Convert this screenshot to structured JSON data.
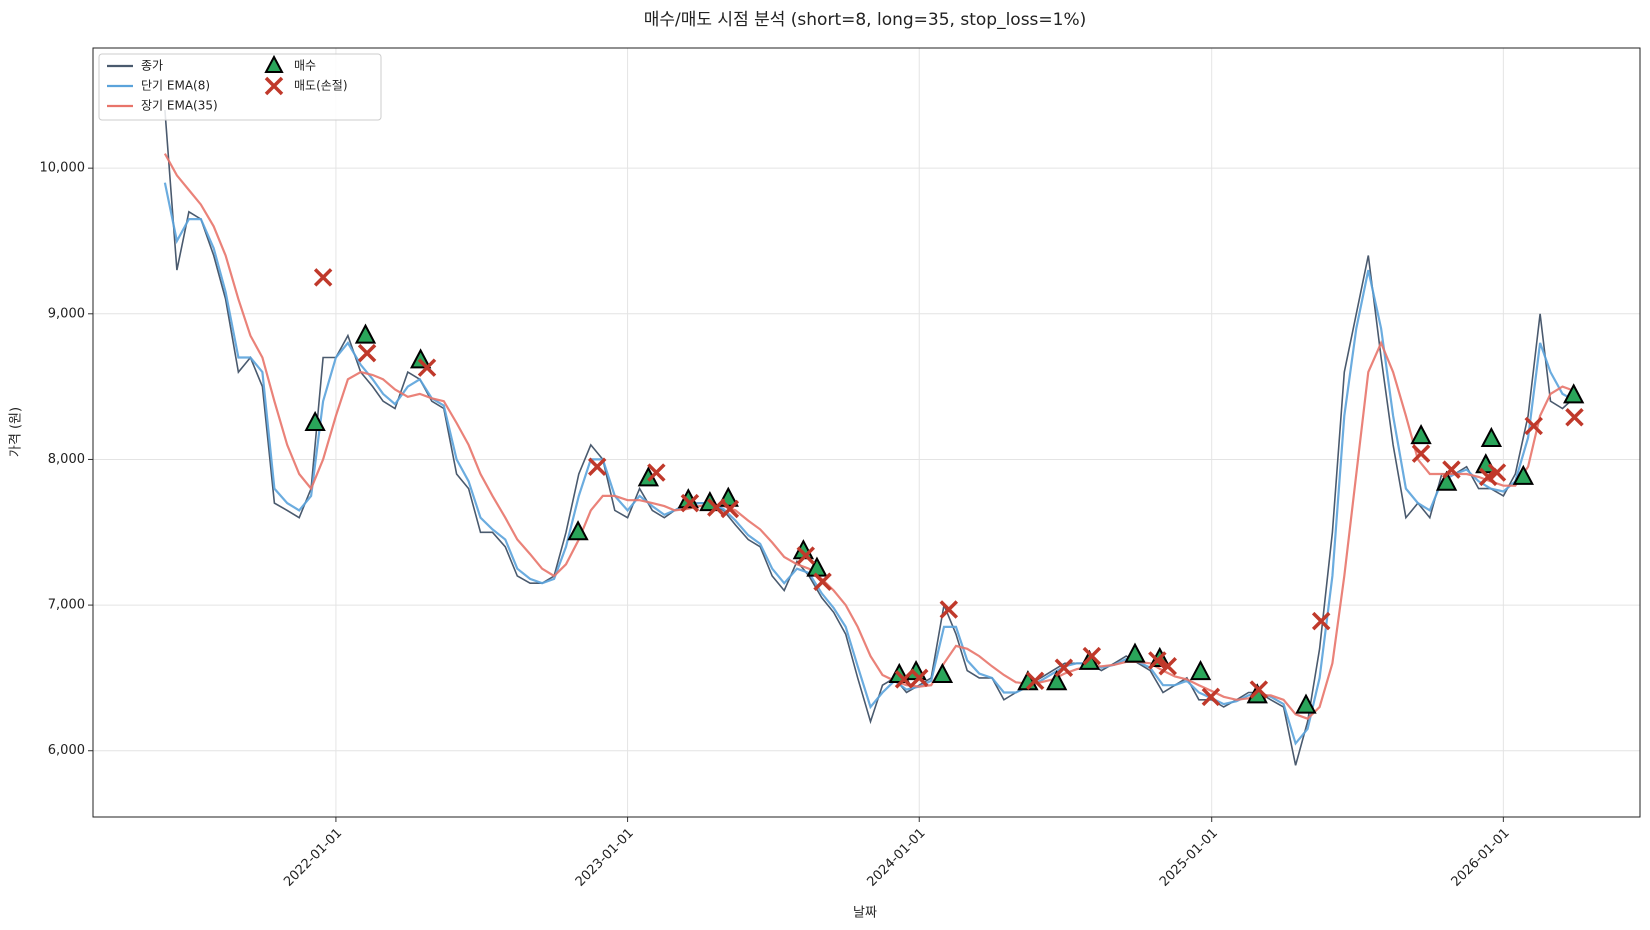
{
  "chart_data": {
    "type": "line",
    "title": "매수/매도 시점 분석 (short=8, long=35, stop_loss=1%)",
    "x_label": "날짜",
    "y_label": "가격 (원)",
    "xlim": [
      "2021-03-03",
      "2026-06-21"
    ],
    "xticks": [
      "2022-01-01",
      "2023-01-01",
      "2024-01-01",
      "2025-01-01",
      "2026-01-01"
    ],
    "ylim": [
      5545,
      10825
    ],
    "yticks": [
      {
        "value": 6000,
        "label": "6,000"
      },
      {
        "value": 7000,
        "label": "7,000"
      },
      {
        "value": 8000,
        "label": "8,000"
      },
      {
        "value": 9000,
        "label": "9,000"
      },
      {
        "value": 10000,
        "label": "10,000"
      }
    ],
    "grid": true,
    "legend": "upper left",
    "x": [
      "2021-06-01",
      "2021-06-16",
      "2021-07-01",
      "2021-07-16",
      "2021-08-01",
      "2021-08-16",
      "2021-09-01",
      "2021-09-16",
      "2021-10-01",
      "2021-10-16",
      "2021-11-01",
      "2021-11-16",
      "2021-12-01",
      "2021-12-16",
      "2022-01-01",
      "2022-01-16",
      "2022-02-01",
      "2022-02-16",
      "2022-03-01",
      "2022-03-16",
      "2022-04-01",
      "2022-04-16",
      "2022-05-01",
      "2022-05-16",
      "2022-06-01",
      "2022-06-16",
      "2022-07-01",
      "2022-07-16",
      "2022-08-01",
      "2022-08-16",
      "2022-09-01",
      "2022-09-16",
      "2022-10-01",
      "2022-10-16",
      "2022-11-01",
      "2022-11-16",
      "2022-12-01",
      "2022-12-16",
      "2023-01-01",
      "2023-01-16",
      "2023-02-01",
      "2023-02-16",
      "2023-03-01",
      "2023-03-16",
      "2023-04-01",
      "2023-04-16",
      "2023-05-01",
      "2023-05-16",
      "2023-06-01",
      "2023-06-16",
      "2023-07-01",
      "2023-07-16",
      "2023-08-01",
      "2023-08-16",
      "2023-09-01",
      "2023-09-16",
      "2023-10-01",
      "2023-10-16",
      "2023-11-01",
      "2023-11-16",
      "2023-12-01",
      "2023-12-16",
      "2024-01-01",
      "2024-01-16",
      "2024-02-01",
      "2024-02-16",
      "2024-03-01",
      "2024-03-16",
      "2024-04-01",
      "2024-04-16",
      "2024-05-01",
      "2024-05-16",
      "2024-06-01",
      "2024-06-16",
      "2024-07-01",
      "2024-07-16",
      "2024-08-01",
      "2024-08-16",
      "2024-09-01",
      "2024-09-16",
      "2024-10-01",
      "2024-10-16",
      "2024-11-01",
      "2024-11-16",
      "2024-12-01",
      "2024-12-16",
      "2025-01-01",
      "2025-01-16",
      "2025-02-01",
      "2025-02-16",
      "2025-03-01",
      "2025-03-16",
      "2025-04-01",
      "2025-04-16",
      "2025-05-01",
      "2025-05-16",
      "2025-06-01",
      "2025-06-16",
      "2025-07-01",
      "2025-07-16",
      "2025-08-01",
      "2025-08-16",
      "2025-09-01",
      "2025-09-16",
      "2025-10-01",
      "2025-10-16",
      "2025-11-01",
      "2025-11-16",
      "2025-12-01",
      "2025-12-16",
      "2026-01-01",
      "2026-01-16",
      "2026-02-01",
      "2026-02-16",
      "2026-03-01",
      "2026-03-16",
      "2026-03-26"
    ],
    "series": [
      {
        "name": "종가",
        "color": "#4a5a6e",
        "values": [
          10400,
          9300,
          9700,
          9650,
          9400,
          9100,
          8600,
          8700,
          8500,
          7700,
          7650,
          7600,
          7800,
          8700,
          8700,
          8850,
          8600,
          8500,
          8400,
          8350,
          8600,
          8550,
          8400,
          8350,
          7900,
          7800,
          7500,
          7500,
          7400,
          7200,
          7150,
          7150,
          7200,
          7500,
          7900,
          8100,
          8000,
          7650,
          7600,
          7800,
          7650,
          7600,
          7650,
          7700,
          7700,
          7700,
          7650,
          7550,
          7450,
          7400,
          7200,
          7100,
          7300,
          7200,
          7050,
          6950,
          6800,
          6500,
          6200,
          6450,
          6500,
          6400,
          6450,
          6500,
          7000,
          6800,
          6550,
          6500,
          6500,
          6350,
          6400,
          6450,
          6500,
          6550,
          6600,
          6600,
          6600,
          6550,
          6600,
          6650,
          6600,
          6550,
          6400,
          6450,
          6500,
          6350,
          6350,
          6300,
          6350,
          6400,
          6400,
          6350,
          6300,
          5900,
          6200,
          6700,
          7500,
          8600,
          9000,
          9400,
          8700,
          8100,
          7600,
          7700,
          7600,
          7900,
          7900,
          7950,
          7800,
          7800,
          7750,
          7900,
          8300,
          9000,
          8400,
          8350,
          8400
        ]
      },
      {
        "name": "단기 EMA(8)",
        "color": "#5ba3db",
        "values": [
          9900,
          9500,
          9650,
          9650,
          9450,
          9150,
          8700,
          8700,
          8600,
          7800,
          7700,
          7650,
          7750,
          8400,
          8700,
          8800,
          8650,
          8550,
          8450,
          8380,
          8500,
          8550,
          8420,
          8370,
          8000,
          7850,
          7600,
          7520,
          7450,
          7250,
          7180,
          7150,
          7180,
          7400,
          7750,
          8000,
          8000,
          7750,
          7650,
          7750,
          7680,
          7620,
          7650,
          7690,
          7700,
          7700,
          7660,
          7580,
          7480,
          7420,
          7250,
          7150,
          7250,
          7220,
          7080,
          6980,
          6850,
          6580,
          6300,
          6400,
          6480,
          6420,
          6440,
          6480,
          6850,
          6850,
          6620,
          6530,
          6500,
          6400,
          6400,
          6440,
          6480,
          6530,
          6580,
          6600,
          6600,
          6570,
          6590,
          6630,
          6610,
          6570,
          6450,
          6450,
          6480,
          6400,
          6360,
          6320,
          6340,
          6380,
          6400,
          6370,
          6320,
          6050,
          6150,
          6500,
          7200,
          8300,
          8900,
          9300,
          8900,
          8300,
          7800,
          7700,
          7650,
          7850,
          7900,
          7930,
          7850,
          7800,
          7780,
          7850,
          8150,
          8800,
          8600,
          8450,
          8420
        ]
      },
      {
        "name": "장기 EMA(35)",
        "color": "#e8746a",
        "values": [
          10100,
          9950,
          9850,
          9750,
          9600,
          9400,
          9100,
          8850,
          8700,
          8400,
          8100,
          7900,
          7800,
          8000,
          8300,
          8550,
          8600,
          8580,
          8550,
          8480,
          8430,
          8450,
          8420,
          8400,
          8250,
          8100,
          7900,
          7750,
          7600,
          7450,
          7350,
          7250,
          7200,
          7280,
          7450,
          7650,
          7750,
          7750,
          7720,
          7720,
          7700,
          7680,
          7650,
          7660,
          7680,
          7690,
          7680,
          7650,
          7580,
          7520,
          7430,
          7330,
          7280,
          7250,
          7180,
          7100,
          7000,
          6850,
          6650,
          6520,
          6480,
          6450,
          6440,
          6450,
          6600,
          6720,
          6700,
          6650,
          6580,
          6520,
          6470,
          6460,
          6470,
          6490,
          6530,
          6560,
          6580,
          6580,
          6590,
          6610,
          6610,
          6600,
          6550,
          6510,
          6490,
          6450,
          6410,
          6370,
          6350,
          6360,
          6380,
          6380,
          6350,
          6250,
          6220,
          6300,
          6600,
          7200,
          7900,
          8600,
          8800,
          8600,
          8300,
          8000,
          7900,
          7900,
          7900,
          7900,
          7880,
          7850,
          7820,
          7820,
          7950,
          8300,
          8450,
          8500,
          8480
        ]
      }
    ],
    "markers": [
      {
        "name": "매수",
        "color": "#2aa55a",
        "marker": "triangle",
        "x": [
          "2021-12-06",
          "2022-02-07",
          "2022-04-17",
          "2022-10-31",
          "2023-01-27",
          "2023-03-18",
          "2023-04-14",
          "2023-05-07",
          "2023-08-09",
          "2023-08-26",
          "2023-12-07",
          "2023-12-28",
          "2024-01-30",
          "2024-05-16",
          "2024-06-21",
          "2024-08-01",
          "2024-09-27",
          "2024-10-28",
          "2024-12-18",
          "2025-02-27",
          "2025-04-29",
          "2025-09-20",
          "2025-10-22",
          "2025-12-10",
          "2025-12-17",
          "2026-01-26",
          "2026-03-30"
        ],
        "values": [
          8250,
          8850,
          8680,
          7500,
          7870,
          7720,
          7700,
          7730,
          7370,
          7250,
          6520,
          6540,
          6520,
          6470,
          6470,
          6610,
          6660,
          6630,
          6540,
          6380,
          6310,
          8160,
          7840,
          7960,
          8140,
          7880,
          8440
        ]
      },
      {
        "name": "매도(손절)",
        "color": "#c0392b",
        "marker": "x",
        "x": [
          "2021-12-16",
          "2022-02-09",
          "2022-04-25",
          "2022-11-24",
          "2023-02-06",
          "2023-03-20",
          "2023-04-22",
          "2023-05-09",
          "2023-08-12",
          "2023-09-02",
          "2023-12-13",
          "2024-01-01",
          "2024-02-07",
          "2024-05-25",
          "2024-06-30",
          "2024-08-04",
          "2024-10-25",
          "2024-11-07",
          "2024-12-31",
          "2025-03-01",
          "2025-05-18",
          "2025-09-20",
          "2025-10-28",
          "2025-12-13",
          "2025-12-24",
          "2026-02-08",
          "2026-03-31"
        ],
        "values": [
          9250,
          8730,
          8630,
          7950,
          7910,
          7700,
          7670,
          7660,
          7340,
          7160,
          6490,
          6500,
          6970,
          6480,
          6570,
          6650,
          6620,
          6580,
          6370,
          6420,
          6890,
          8040,
          7930,
          7880,
          7910,
          8230,
          8290
        ]
      }
    ]
  }
}
